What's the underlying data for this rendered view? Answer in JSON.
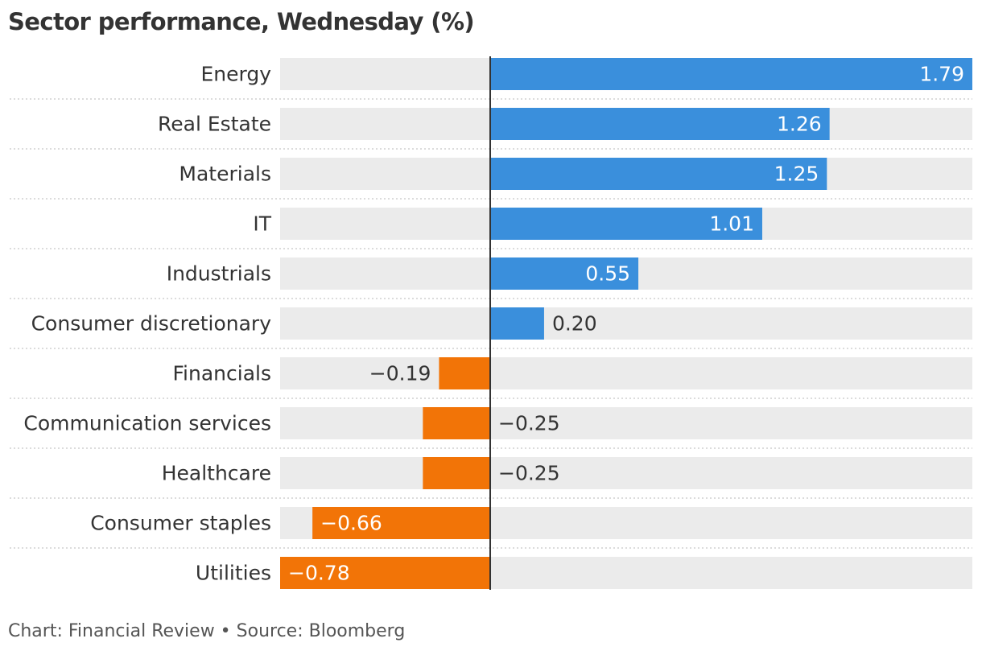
{
  "title": "Sector performance, Wednesday (%)",
  "footer": "Chart: Financial Review • Source: Bloomberg",
  "colors": {
    "positive": "#3a8fdc",
    "negative": "#f27407",
    "track": "#ebebeb",
    "axis": "#333333",
    "label": "#333333"
  },
  "chart_data": {
    "type": "bar",
    "orientation": "horizontal",
    "categories": [
      "Energy",
      "Real Estate",
      "Materials",
      "IT",
      "Industrials",
      "Consumer discretionary",
      "Financials",
      "Communication services",
      "Healthcare",
      "Consumer staples",
      "Utilities"
    ],
    "values": [
      1.79,
      1.26,
      1.25,
      1.01,
      0.55,
      0.2,
      -0.19,
      -0.25,
      -0.25,
      -0.66,
      -0.78
    ],
    "value_labels": [
      "1.79",
      "1.26",
      "1.25",
      "1.01",
      "0.55",
      "0.20",
      "−0.19",
      "−0.25",
      "−0.25",
      "−0.66",
      "−0.78"
    ],
    "xlim": [
      -0.78,
      1.79
    ],
    "grid": false,
    "legend": "none"
  }
}
